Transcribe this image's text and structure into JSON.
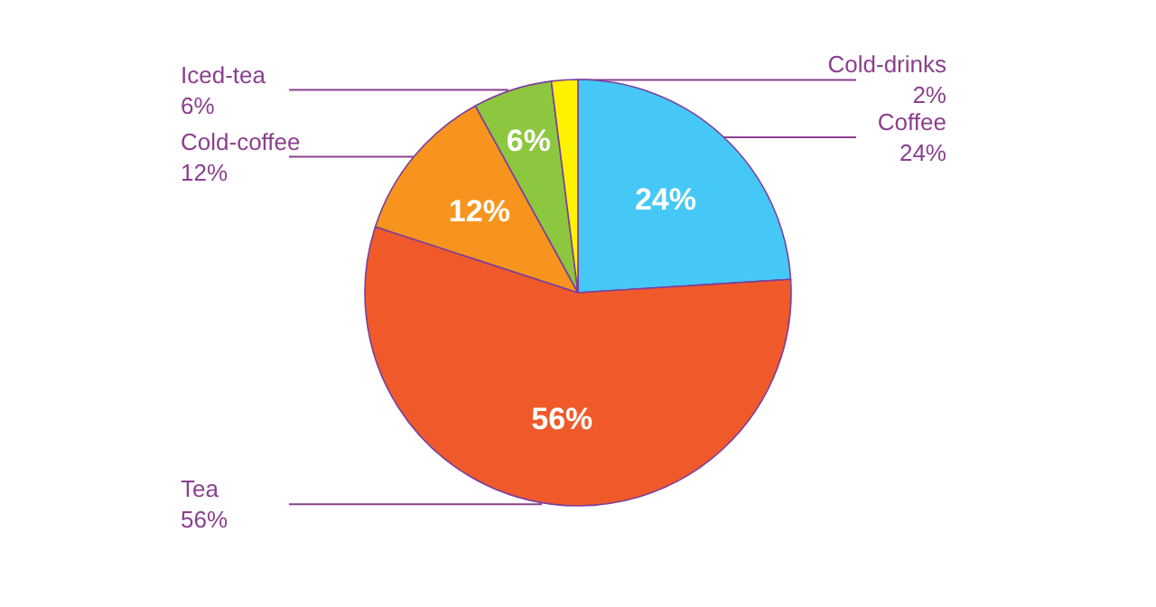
{
  "chart_data": {
    "type": "pie",
    "categories": [
      "Coffee",
      "Tea",
      "Cold-coffee",
      "Iced-tea",
      "Cold-drinks"
    ],
    "values": [
      24,
      56,
      12,
      6,
      2
    ],
    "colors": [
      "#45c8f5",
      "#f05a2a",
      "#f7941d",
      "#8dc63f",
      "#fff200"
    ],
    "value_labels": [
      "24%",
      "56%",
      "12%",
      "6%",
      "2%"
    ],
    "annotations": [
      {
        "text": "24%",
        "x": "Coffee"
      },
      {
        "text": "56%",
        "x": "Tea"
      },
      {
        "text": "12%",
        "x": "Cold-coffee"
      },
      {
        "text": "6%",
        "x": "Iced-tea"
      }
    ],
    "legend": false
  }
}
